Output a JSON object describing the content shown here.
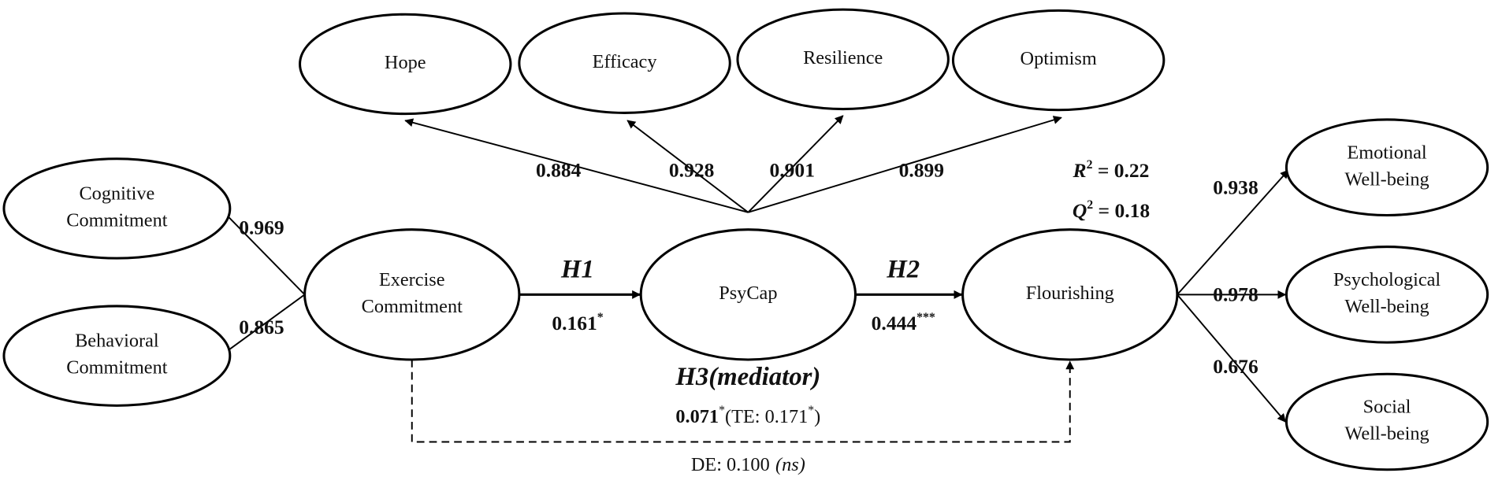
{
  "nodes": [
    {
      "lines": [
        "Hope"
      ]
    },
    {
      "lines": [
        "Efficacy"
      ]
    },
    {
      "lines": [
        "Resilience"
      ]
    },
    {
      "lines": [
        "Optimism"
      ]
    },
    {
      "lines": [
        "Cognitive",
        "Commitment"
      ]
    },
    {
      "lines": [
        "Behavioral",
        "Commitment"
      ]
    },
    {
      "lines": [
        "Exercise",
        "Commitment"
      ]
    },
    {
      "lines": [
        "PsyCap"
      ]
    },
    {
      "lines": [
        "Flourishing"
      ]
    },
    {
      "lines": [
        "Emotional",
        "Well-being"
      ]
    },
    {
      "lines": [
        "Psychological",
        "Well-being"
      ]
    },
    {
      "lines": [
        "Social",
        "Well-being"
      ]
    }
  ],
  "loadings": [
    "0.884",
    "0.928",
    "0.901",
    "0.899",
    "0.969",
    "0.865",
    "0.938",
    "0.978",
    "0.676"
  ],
  "paths": [
    {
      "label": "H1",
      "value": "0.161",
      "sig": "*"
    },
    {
      "label": "H2",
      "value": "0.444",
      "sig": "***"
    }
  ],
  "mediation": {
    "label": "H3(mediator)",
    "indirect": "0.071",
    "indirect_sig": "*",
    "total": "(TE: 0.171",
    "total_sig": "*",
    "total_close": ")",
    "direct": "DE: 0.100",
    "direct_sig": "(ns)"
  },
  "fit": [
    {
      "symbol": "R",
      "exp": "2",
      "text": " = 0.22"
    },
    {
      "symbol": "Q",
      "exp": "2",
      "text": " = 0.18"
    }
  ]
}
